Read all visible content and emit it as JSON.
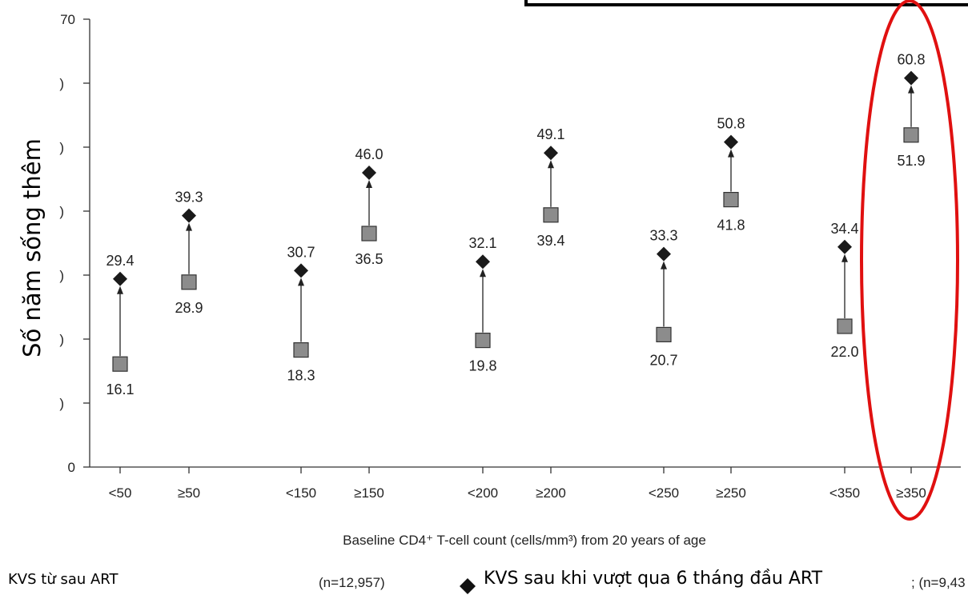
{
  "chart_data": {
    "type": "scatter",
    "ylabel": "Số năm sống thêm",
    "xlabel": "Baseline CD4⁺ T-cell count (cells/mm³) from 20 years of age",
    "ylim": [
      0,
      70
    ],
    "yticks_visible": [
      "70",
      "0"
    ],
    "categories": [
      "<50",
      "≥50",
      "<150",
      "≥150",
      "<200",
      "≥200",
      "<250",
      "≥250",
      "<350",
      "≥350"
    ],
    "series": [
      {
        "name": "KVS từ sau ART",
        "marker": "square",
        "color": "#8c8c8c",
        "values": [
          16.1,
          28.9,
          18.3,
          36.5,
          19.8,
          39.4,
          20.7,
          41.8,
          22.0,
          51.9
        ]
      },
      {
        "name": "KVS sau khi vượt qua  6 tháng đầu ART",
        "marker": "diamond",
        "color": "#1a1a1a",
        "values": [
          29.4,
          39.3,
          30.7,
          46.0,
          32.1,
          49.1,
          33.3,
          50.8,
          34.4,
          60.8
        ]
      }
    ],
    "data_labels": {
      "square": [
        "16.1",
        "28.9",
        "18.3",
        "36.5",
        "19.8",
        "39.4",
        "20.7",
        "41.8",
        "22.0",
        "51.9"
      ],
      "diamond": [
        "29.4",
        "39.3",
        "30.7",
        "46.0",
        "32.1",
        "49.1",
        "33.3",
        "50.8",
        "34.4",
        "60.8"
      ]
    },
    "annotation": "arrow from square to diamond; red ellipse highlights ≥350 group",
    "highlight_color": "#e01010"
  },
  "legend": {
    "left_label": "KVS từ sau ART",
    "n_left": "(n=12,957)",
    "diamond_label": "KVS sau khi vượt qua  6 tháng đầu ART",
    "n_right_fragment": "; (n=9,43"
  }
}
